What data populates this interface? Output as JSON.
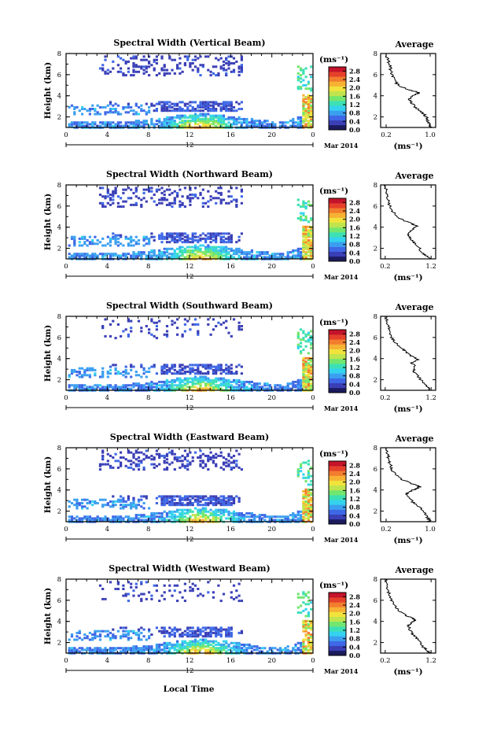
{
  "chart_data": {
    "type": "heatmap",
    "date_label": "Mar 2014",
    "date_marker": "12",
    "xlabel": "Local Time",
    "ylabel": "Height (km)",
    "x_ticks": [
      "0",
      "4",
      "8",
      "12",
      "16",
      "20",
      "0"
    ],
    "x_range": [
      0,
      24
    ],
    "y_range": [
      1,
      8
    ],
    "y_ticks": [
      "2",
      "4",
      "6",
      "8"
    ],
    "colorbar": {
      "unit": "(ms⁻¹)",
      "ticks": [
        "2.8",
        "2.4",
        "2.0",
        "1.6",
        "1.2",
        "0.8",
        "0.4",
        "0.0"
      ],
      "range": [
        0,
        3.0
      ],
      "colors": [
        "#1b1b5e",
        "#3a3fb6",
        "#3e68e6",
        "#3b9ff0",
        "#34d2ee",
        "#3ce0b4",
        "#72e66e",
        "#bfe44e",
        "#f1e33c",
        "#f7b234",
        "#f27d2e",
        "#e5402a",
        "#c4132a"
      ]
    },
    "panels": [
      {
        "title": "Spectral Width (Vertical Beam)",
        "profile_title": "Average",
        "profile_xlabel": "(ms⁻¹)",
        "profile_xticks": [
          "0.2",
          "1.0"
        ],
        "profile_xrange": [
          0.1,
          1.1
        ],
        "profile_yticks": [
          "2",
          "4",
          "6",
          "8"
        ],
        "profile": [
          [
            1.0,
            1.02
          ],
          [
            1.3,
            0.98
          ],
          [
            1.6,
            0.96
          ],
          [
            2.0,
            0.93
          ],
          [
            2.4,
            0.86
          ],
          [
            2.8,
            0.76
          ],
          [
            3.2,
            0.68
          ],
          [
            3.6,
            0.62
          ],
          [
            3.9,
            0.66
          ],
          [
            4.1,
            0.74
          ],
          [
            4.3,
            0.8
          ],
          [
            4.6,
            0.58
          ],
          [
            5.0,
            0.42
          ],
          [
            5.5,
            0.34
          ],
          [
            6.0,
            0.3
          ],
          [
            6.5,
            0.28
          ],
          [
            7.0,
            0.26
          ],
          [
            7.5,
            0.22
          ],
          [
            8.0,
            0.2
          ]
        ]
      },
      {
        "title": "Spectral Width (Northward Beam)",
        "profile_title": "Average",
        "profile_xlabel": "(ms⁻¹)",
        "profile_xticks": [
          "0.2",
          "1.2"
        ],
        "profile_xrange": [
          0.1,
          1.3
        ],
        "profile_yticks": [
          "2",
          "4",
          "6",
          "8"
        ],
        "profile": [
          [
            1.0,
            1.2
          ],
          [
            1.3,
            1.1
          ],
          [
            1.6,
            1.0
          ],
          [
            2.0,
            0.95
          ],
          [
            2.4,
            0.86
          ],
          [
            2.8,
            0.76
          ],
          [
            3.2,
            0.7
          ],
          [
            3.6,
            0.74
          ],
          [
            3.9,
            0.82
          ],
          [
            4.1,
            0.88
          ],
          [
            4.3,
            0.8
          ],
          [
            4.6,
            0.62
          ],
          [
            5.0,
            0.46
          ],
          [
            5.5,
            0.36
          ],
          [
            6.0,
            0.3
          ],
          [
            6.5,
            0.27
          ],
          [
            7.0,
            0.25
          ],
          [
            7.5,
            0.22
          ],
          [
            8.0,
            0.2
          ]
        ]
      },
      {
        "title": "Spectral Width (Southward Beam)",
        "profile_title": "Average",
        "profile_xlabel": "(ms⁻¹)",
        "profile_xticks": [
          "0.2",
          "1.2"
        ],
        "profile_xrange": [
          0.1,
          1.3
        ],
        "profile_yticks": [
          "2",
          "4",
          "6",
          "8"
        ],
        "profile": [
          [
            1.0,
            1.18
          ],
          [
            1.3,
            1.12
          ],
          [
            1.6,
            1.05
          ],
          [
            2.0,
            0.98
          ],
          [
            2.4,
            0.9
          ],
          [
            2.8,
            0.82
          ],
          [
            3.2,
            0.86
          ],
          [
            3.6,
            0.78
          ],
          [
            3.9,
            0.92
          ],
          [
            4.1,
            0.84
          ],
          [
            4.3,
            0.74
          ],
          [
            4.6,
            0.66
          ],
          [
            5.0,
            0.56
          ],
          [
            5.5,
            0.42
          ],
          [
            6.0,
            0.34
          ],
          [
            6.5,
            0.3
          ],
          [
            7.0,
            0.27
          ],
          [
            7.5,
            0.24
          ],
          [
            8.0,
            0.22
          ]
        ]
      },
      {
        "title": "Spectral Width (Eastward Beam)",
        "profile_title": "Average",
        "profile_xlabel": "(ms⁻¹)",
        "profile_xticks": [
          "0.2",
          "1.0"
        ],
        "profile_xrange": [
          0.1,
          1.1
        ],
        "profile_yticks": [
          "2",
          "4",
          "6",
          "8"
        ],
        "profile": [
          [
            1.0,
            1.0
          ],
          [
            1.3,
            0.96
          ],
          [
            1.6,
            0.92
          ],
          [
            2.0,
            0.88
          ],
          [
            2.4,
            0.8
          ],
          [
            2.8,
            0.7
          ],
          [
            3.2,
            0.62
          ],
          [
            3.6,
            0.56
          ],
          [
            3.9,
            0.64
          ],
          [
            4.1,
            0.74
          ],
          [
            4.3,
            0.82
          ],
          [
            4.6,
            0.66
          ],
          [
            5.0,
            0.48
          ],
          [
            5.5,
            0.36
          ],
          [
            6.0,
            0.3
          ],
          [
            6.5,
            0.27
          ],
          [
            7.0,
            0.25
          ],
          [
            7.5,
            0.22
          ],
          [
            8.0,
            0.2
          ]
        ]
      },
      {
        "title": "Spectral Width (Westward Beam)",
        "profile_title": "Average",
        "profile_xlabel": "(ms⁻¹)",
        "profile_xticks": [
          "0.2",
          "1.2"
        ],
        "profile_xrange": [
          0.1,
          1.3
        ],
        "profile_yticks": [
          "2",
          "4",
          "6",
          "8"
        ],
        "profile": [
          [
            1.0,
            1.18
          ],
          [
            1.3,
            1.1
          ],
          [
            1.6,
            1.02
          ],
          [
            2.0,
            0.96
          ],
          [
            2.4,
            0.88
          ],
          [
            2.8,
            0.8
          ],
          [
            3.2,
            0.74
          ],
          [
            3.6,
            0.7
          ],
          [
            3.9,
            0.78
          ],
          [
            4.1,
            0.86
          ],
          [
            4.3,
            0.8
          ],
          [
            4.6,
            0.64
          ],
          [
            5.0,
            0.5
          ],
          [
            5.5,
            0.4
          ],
          [
            6.0,
            0.33
          ],
          [
            6.5,
            0.29
          ],
          [
            7.0,
            0.26
          ],
          [
            7.5,
            0.23
          ],
          [
            8.0,
            0.21
          ]
        ]
      }
    ]
  }
}
